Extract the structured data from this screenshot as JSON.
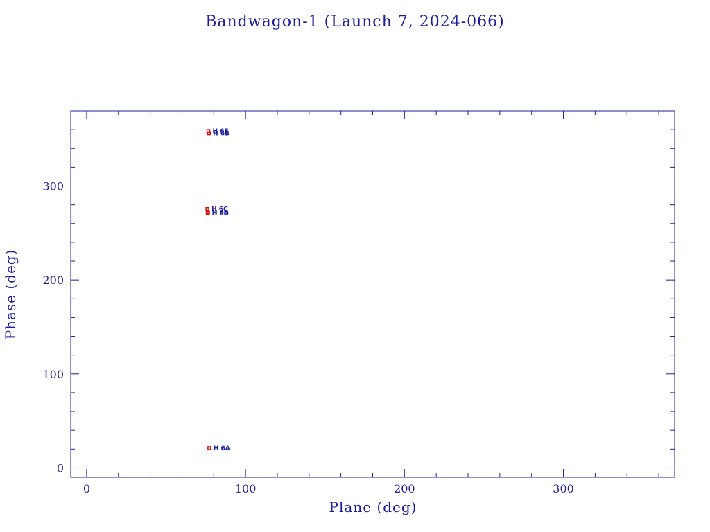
{
  "chart_data": {
    "type": "scatter",
    "title": "Bandwagon-1 (Launch 7, 2024-066)",
    "xlabel": "Plane (deg)",
    "ylabel": "Phase (deg)",
    "xlim": [
      -10,
      370
    ],
    "ylim": [
      -10,
      380
    ],
    "xticks": [
      0,
      100,
      200,
      300
    ],
    "yticks": [
      0,
      100,
      200,
      300
    ],
    "grid": false,
    "colors": {
      "axis": "#1c1c9c",
      "marker": "#e00000",
      "label": "#1c1c9c"
    },
    "points": [
      {
        "x": 77.2,
        "y": 21.0,
        "label": "H 6A"
      },
      {
        "x": 76.0,
        "y": 275.5,
        "label": "H 6C"
      },
      {
        "x": 76.4,
        "y": 272.0,
        "label": "H 6B"
      },
      {
        "x": 76.2,
        "y": 271.0,
        "label": "H 6D"
      },
      {
        "x": 76.6,
        "y": 358.5,
        "label": "H 6E"
      },
      {
        "x": 76.9,
        "y": 356.0,
        "label": "H 6B"
      }
    ]
  }
}
